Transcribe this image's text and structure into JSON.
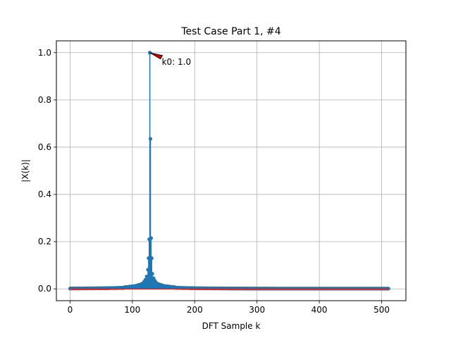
{
  "chart_data": {
    "type": "stem",
    "title": "Test Case Part 1, #4",
    "xlabel": "DFT Sample k",
    "ylabel": "|X(k)|",
    "xlim": [
      -22,
      539
    ],
    "ylim": [
      -0.05,
      1.05
    ],
    "xticks": [
      0,
      100,
      200,
      300,
      400,
      500
    ],
    "yticks": [
      0.0,
      0.2,
      0.4,
      0.6,
      0.8,
      1.0
    ],
    "xtick_labels": [
      "0",
      "100",
      "200",
      "300",
      "400",
      "500"
    ],
    "ytick_labels": [
      "0.0",
      "0.2",
      "0.4",
      "0.6",
      "0.8",
      "1.0"
    ],
    "grid": true,
    "n_samples": 512,
    "peak_index": 128,
    "peak_value": 1.0,
    "spectrum": {
      "description": "Magnitude of DFT of a sinusoid at bin 128 with spectral leakage, sampled at k = 0..511",
      "near_peak": [
        {
          "k": 126,
          "value": 0.13
        },
        {
          "k": 127,
          "value": 0.21
        },
        {
          "k": 128,
          "value": 1.0
        },
        {
          "k": 129,
          "value": 0.635
        },
        {
          "k": 130,
          "value": 0.215
        },
        {
          "k": 131,
          "value": 0.13
        }
      ]
    },
    "baseline": 0.0,
    "annotation": {
      "text": "k0: 1.0",
      "target_x": 128,
      "target_y": 1.0
    },
    "colors": {
      "stem": "#1f77b4",
      "baseline": "#d62728",
      "grid": "#b0b0b0",
      "arrow": "#cc0000"
    }
  }
}
